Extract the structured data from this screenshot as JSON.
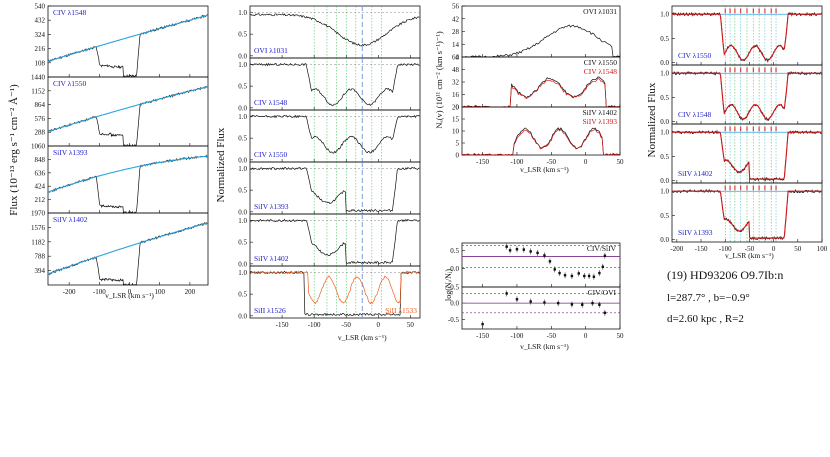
{
  "colors": {
    "data": "#111111",
    "fit": "#2aa3e0",
    "model": "#d11818",
    "ovi_overlay": "#f06020",
    "label": "#2020c8",
    "label_red": "#d11818",
    "sample": "#2db84a",
    "sample2": "#33b8c8",
    "ref": "#7a2a8a",
    "vdash": "#7a9ad8"
  },
  "info": {
    "name": "(19) HD93206 O9.7Ib:n",
    "coords": "l=287.7° , b=−0.9°",
    "dist": "d=2.60 kpc , R=2"
  },
  "chart_data": [
    {
      "id": "flux",
      "type": "line",
      "ylabel": "Flux (10⁻¹³ erg s⁻¹ cm⁻² Å⁻¹)",
      "xlabel": "v_LSR (km s⁻¹)",
      "xlim": [
        -270,
        260
      ],
      "xticks": [
        -200,
        -100,
        0,
        100,
        200
      ],
      "panels": [
        {
          "label": "CIV λ1548",
          "ylim": [
            0,
            540
          ],
          "yticks": [
            108,
            216,
            324,
            432,
            540
          ],
          "cont": [
            120,
            300,
            470
          ],
          "dips": [
            [
              -90,
              85
            ],
            [
              30,
              85
            ]
          ]
        },
        {
          "label": "CIV λ1550",
          "ylim": [
            0,
            1440
          ],
          "yticks": [
            288,
            576,
            864,
            1152,
            1440
          ],
          "cont": [
            300,
            800,
            1240
          ],
          "dips": [
            [
              -90,
              250
            ],
            [
              30,
              250
            ]
          ]
        },
        {
          "label": "SiIV λ1393",
          "ylim": [
            0,
            1060
          ],
          "yticks": [
            212,
            424,
            636,
            848,
            1060
          ],
          "cont": [
            330,
            700,
            900
          ],
          "dips": [
            [
              -80,
              110
            ],
            [
              25,
              110
            ]
          ]
        },
        {
          "label": "SiIV λ1402",
          "ylim": [
            0,
            1970
          ],
          "yticks": [
            394,
            788,
            1182,
            1576,
            1970
          ],
          "cont": [
            300,
            1050,
            1700
          ],
          "dips": [
            [
              -80,
              150
            ],
            [
              25,
              150
            ]
          ]
        }
      ]
    },
    {
      "id": "norm",
      "type": "line",
      "ylabel": "Normalized Flux",
      "xlabel": "v_LSR (km s⁻¹)",
      "xlim": [
        -200,
        65
      ],
      "xticks": [
        -150,
        -100,
        -50,
        0,
        50
      ],
      "yticks": [
        0,
        0.5,
        1.0
      ],
      "ref_v": -25,
      "panels": [
        {
          "label": "OVI λ1031"
        },
        {
          "label": "CIV λ1548"
        },
        {
          "label": "CIV λ1550"
        },
        {
          "label": "SiIV λ1393"
        },
        {
          "label": "SiIV λ1402"
        },
        {
          "label": "SiII λ1526",
          "label2": "SiII λ1533"
        }
      ]
    },
    {
      "id": "ncol",
      "type": "line",
      "ylabel": "Nₐ(v) (10¹¹ cm⁻² (km s⁻¹)⁻¹)",
      "xlabel": "v_LSR (km s⁻¹)",
      "xlim": [
        -180,
        50
      ],
      "xticks": [
        -150,
        -100,
        -50,
        0,
        50
      ],
      "panels": [
        {
          "label": "OVI λ1031",
          "ylim": [
            0,
            56
          ],
          "yticks": [
            0,
            14,
            28,
            42,
            56
          ]
        },
        {
          "label": "CIV λ1550",
          "label2": "CIV λ1548",
          "ylim": [
            0,
            64
          ],
          "yticks": [
            0,
            16,
            32,
            48,
            64
          ]
        },
        {
          "label": "SiIV λ1402",
          "label2": "SiIV λ1393",
          "ylim": [
            0,
            20
          ],
          "yticks": [
            0,
            5,
            10,
            15,
            20
          ]
        }
      ]
    },
    {
      "id": "ratio",
      "type": "scatter",
      "ylabel": "log(Nᵢ/Nⱼ)",
      "xlabel": "v_LSR (km s⁻¹)",
      "xlim": [
        -180,
        50
      ],
      "xticks": [
        -150,
        -100,
        -50,
        0,
        50
      ],
      "panels": [
        {
          "label": "CIV/SiIV",
          "ylim": [
            -0.5,
            0.7
          ],
          "yticks": [
            -0.5,
            0.0,
            0.5
          ],
          "mean": 0.33,
          "points": [
            [
              -115,
              0.6
            ],
            [
              -110,
              0.5
            ],
            [
              -100,
              0.53
            ],
            [
              -90,
              0.52
            ],
            [
              -80,
              0.47
            ],
            [
              -70,
              0.43
            ],
            [
              -60,
              0.36
            ],
            [
              -52,
              0.2
            ],
            [
              -45,
              -0.02
            ],
            [
              -38,
              -0.12
            ],
            [
              -30,
              -0.18
            ],
            [
              -20,
              -0.2
            ],
            [
              -10,
              -0.13
            ],
            [
              -2,
              -0.2
            ],
            [
              5,
              -0.2
            ],
            [
              12,
              -0.22
            ],
            [
              20,
              -0.12
            ],
            [
              25,
              0.05
            ],
            [
              28,
              0.35
            ]
          ]
        },
        {
          "label": "CIV/OVI",
          "ylim": [
            -0.8,
            0.5
          ],
          "yticks": [
            -0.5,
            0.0
          ],
          "mean": 0.0,
          "points": [
            [
              -150,
              -0.65
            ],
            [
              -115,
              0.3
            ],
            [
              -100,
              0.12
            ],
            [
              -80,
              0.05
            ],
            [
              -60,
              0.02
            ],
            [
              -40,
              0.0
            ],
            [
              -20,
              -0.04
            ],
            [
              -5,
              -0.05
            ],
            [
              10,
              0.0
            ],
            [
              20,
              -0.05
            ],
            [
              28,
              -0.3
            ]
          ]
        }
      ]
    },
    {
      "id": "fit",
      "type": "line",
      "ylabel": "Normalized Flux",
      "xlabel": "v_LSR (km s⁻¹)",
      "xlim": [
        -210,
        100
      ],
      "xticks": [
        -200,
        -150,
        -100,
        -50,
        0,
        50,
        100
      ],
      "yticks": [
        0,
        0.5,
        1.0
      ],
      "components": [
        -100,
        -90,
        -80,
        -68,
        -55,
        -42,
        -30,
        -18,
        -5,
        5
      ],
      "panels": [
        {
          "label": "CIV λ1550"
        },
        {
          "label": "CIV λ1548"
        },
        {
          "label": "SiIV λ1402"
        },
        {
          "label": "SiIV λ1393"
        }
      ]
    }
  ]
}
